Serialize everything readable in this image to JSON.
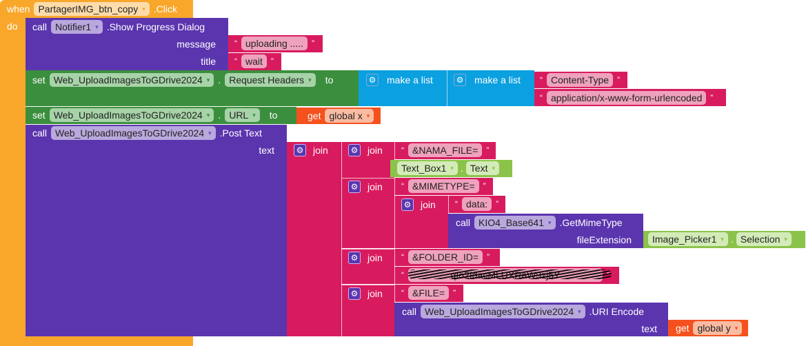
{
  "event": {
    "when": "when",
    "component": "PartagerIMG_btn_copy",
    "event": ".Click",
    "do": "do"
  },
  "notifier": {
    "call": "call",
    "component": "Notifier1",
    "method": ".Show Progress Dialog",
    "message_label": "message",
    "message_value": "uploading .....",
    "title_label": "title",
    "title_value": "wait"
  },
  "set_headers": {
    "set": "set",
    "component": "Web_UploadImagesToGDrive2024",
    "dot": ".",
    "property": "Request Headers",
    "to": "to",
    "list1": "make a list",
    "list2": "make a list",
    "item1": "Content-Type",
    "item2": "application/x-www-form-urlencoded"
  },
  "set_url": {
    "set": "set",
    "component": "Web_UploadImagesToGDrive2024",
    "dot": ".",
    "property": "URL",
    "to": "to",
    "get": "get",
    "var": "global x"
  },
  "post": {
    "call": "call",
    "component": "Web_UploadImagesToGDrive2024",
    "method": ".Post Text",
    "text_label": "text",
    "join": "join"
  },
  "join1": {
    "join": "join",
    "str": "&NAMA_FILE=",
    "comp": "Text_Box1",
    "dot": ".",
    "prop": "Text"
  },
  "join2": {
    "join": "join",
    "str": "&MIMETYPE=",
    "inner_join": "join",
    "data": "data:",
    "call": "call",
    "comp": "KIO4_Base641",
    "method": ".GetMimeType",
    "arg": "fileExtension",
    "picker": "Image_Picker1",
    "dot": ".",
    "prop": "Selection"
  },
  "join3": {
    "join": "join",
    "str": "&FOLDER_ID=",
    "redacted": "qIo2IdacMLUXRaW9zj5Y"
  },
  "join4": {
    "join": "join",
    "str": "&FILE=",
    "call": "call",
    "comp": "Web_UploadImagesToGDrive2024",
    "method": ".URI Encode",
    "arg": "text",
    "get": "get",
    "var": "global y"
  },
  "quote_open": "“",
  "quote_close": "”",
  "dropdown": "▾",
  "gear": "⚙"
}
